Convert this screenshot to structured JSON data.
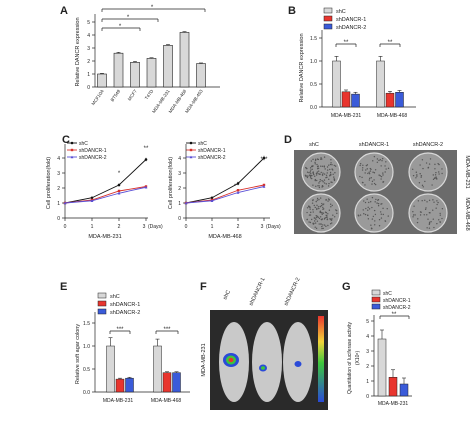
{
  "colors": {
    "shC": "#d8d8d8",
    "shDANCR1": "#e8352e",
    "shDANCR2": "#3a5bd9",
    "line_shC": "#111111",
    "line_sh1": "#d8312b",
    "line_sh2": "#5a4fd6",
    "dish": "#555555",
    "mouse": "#c9c9c9"
  },
  "panels": {
    "A": {
      "letter": "A",
      "ylabel": "Relative DANCR expression",
      "yticks": [
        "5",
        "4",
        "3",
        "2",
        "1",
        "0"
      ],
      "sig": [
        "*",
        "*",
        "*"
      ]
    },
    "B": {
      "letter": "B",
      "ylabel": "Relative DANCR expression",
      "yticks": [
        "1.5",
        "1.0",
        "0.5",
        "0.0"
      ],
      "legend": [
        "shC",
        "shDANCR-1",
        "shDANCR-2"
      ],
      "sig": [
        "**",
        "**"
      ]
    },
    "C": {
      "letter": "C",
      "ylabel": "Cell proliferation(fold)",
      "ylabel2": "Cell proliferation(fold)",
      "yticks": [
        "4",
        "3",
        "2",
        "1",
        "0"
      ],
      "xticks": [
        "0",
        "1",
        "2",
        "3"
      ],
      "days": "(Days)",
      "xcap1": "MDA-MB-231",
      "xcap2": "MDA-MB-468",
      "legend": [
        "shC",
        "shDANCR-1",
        "shDANCR-2"
      ],
      "sig1": [
        "*",
        "**"
      ],
      "sig2": [
        "*",
        "***"
      ]
    },
    "D": {
      "letter": "D",
      "cols": [
        "shC",
        "shDANCR-1",
        "shDANCR-2"
      ],
      "rows": [
        "MDA-MB-231",
        "MDA-MB-468"
      ]
    },
    "E": {
      "letter": "E",
      "ylabel": "Relative soft agar colony",
      "yticks": [
        "1.5",
        "1.0",
        "0.5",
        "0.0"
      ],
      "legend": [
        "shC",
        "shDANCR-1",
        "shDANCR-2"
      ],
      "sig": [
        "***",
        "***"
      ]
    },
    "F": {
      "letter": "F",
      "cols": [
        "shC",
        "shDANCR-1",
        "shDANCR-2"
      ],
      "side": "MDA-MB-231"
    },
    "G": {
      "letter": "G",
      "ylabel": "Quantitation of luciferase activity",
      "ylabel2": "(X10⁶)",
      "yticks": [
        "5",
        "4",
        "3",
        "2",
        "1",
        "0"
      ],
      "legend": [
        "shC",
        "shDANCR-1",
        "shDANCR-2"
      ],
      "sig": [
        "**"
      ],
      "xcap": "MDA-MB-231"
    }
  },
  "chart_data": [
    {
      "panel": "A",
      "type": "bar",
      "categories": [
        "MCF10A",
        "BT549",
        "MCF7",
        "T47D",
        "MDA-MB-231",
        "MDA-MB-468",
        "MDA-MB-453"
      ],
      "values": [
        1.0,
        2.6,
        1.9,
        2.2,
        3.2,
        4.2,
        1.8
      ],
      "errors": [
        0.05,
        0.07,
        0.07,
        0.05,
        0.07,
        0.06,
        0.05
      ],
      "ylim": [
        0,
        5.5
      ]
    },
    {
      "panel": "B",
      "type": "bar",
      "categories": [
        "MDA-MB-231",
        "MDA-MB-468"
      ],
      "series": [
        {
          "name": "shC",
          "values": [
            1.0,
            1.0
          ],
          "errors": [
            0.1,
            0.1
          ]
        },
        {
          "name": "shDANCR-1",
          "values": [
            0.33,
            0.3
          ],
          "errors": [
            0.04,
            0.04
          ]
        },
        {
          "name": "shDANCR-2",
          "values": [
            0.28,
            0.32
          ],
          "errors": [
            0.04,
            0.04
          ]
        }
      ],
      "ylim": [
        0,
        1.5
      ]
    },
    {
      "panel": "C1",
      "type": "line",
      "x": [
        0,
        1,
        2,
        3
      ],
      "series": [
        {
          "name": "shC",
          "values": [
            1.0,
            1.35,
            2.2,
            3.9
          ],
          "errors": [
            0.03,
            0.05,
            0.1,
            0.12
          ]
        },
        {
          "name": "shDANCR-1",
          "values": [
            1.0,
            1.2,
            1.8,
            2.1
          ],
          "errors": [
            0.03,
            0.05,
            0.08,
            0.08
          ]
        },
        {
          "name": "shDANCR-2",
          "values": [
            1.0,
            1.15,
            1.65,
            2.05
          ],
          "errors": [
            0.03,
            0.05,
            0.08,
            0.08
          ]
        }
      ],
      "ylim": [
        0,
        4.5
      ]
    },
    {
      "panel": "C2",
      "type": "line",
      "x": [
        0,
        1,
        2,
        3
      ],
      "series": [
        {
          "name": "shC",
          "values": [
            1.0,
            1.35,
            2.3,
            4.0
          ],
          "errors": [
            0.03,
            0.05,
            0.12,
            0.15
          ]
        },
        {
          "name": "shDANCR-1",
          "values": [
            1.0,
            1.2,
            1.85,
            2.2
          ],
          "errors": [
            0.03,
            0.05,
            0.08,
            0.08
          ]
        },
        {
          "name": "shDANCR-2",
          "values": [
            1.0,
            1.15,
            1.7,
            2.1
          ],
          "errors": [
            0.03,
            0.05,
            0.08,
            0.08
          ]
        }
      ],
      "ylim": [
        0,
        4.5
      ]
    },
    {
      "panel": "E",
      "type": "bar",
      "categories": [
        "MDA-MB-231",
        "MDA-MB-468"
      ],
      "series": [
        {
          "name": "shC",
          "values": [
            1.0,
            1.0
          ],
          "errors": [
            0.18,
            0.15
          ]
        },
        {
          "name": "shDANCR-1",
          "values": [
            0.28,
            0.42
          ],
          "errors": [
            0.02,
            0.02
          ]
        },
        {
          "name": "shDANCR-2",
          "values": [
            0.3,
            0.42
          ],
          "errors": [
            0.02,
            0.02
          ]
        }
      ],
      "ylim": [
        0,
        1.5
      ]
    },
    {
      "panel": "G",
      "type": "bar",
      "categories": [
        "MDA-MB-231"
      ],
      "series": [
        {
          "name": "shC",
          "values": [
            3.8
          ],
          "errors": [
            0.6
          ]
        },
        {
          "name": "shDANCR-1",
          "values": [
            1.25
          ],
          "errors": [
            0.5
          ]
        },
        {
          "name": "shDANCR-2",
          "values": [
            0.8
          ],
          "errors": [
            0.4
          ]
        }
      ],
      "ylim": [
        0,
        5
      ]
    }
  ]
}
